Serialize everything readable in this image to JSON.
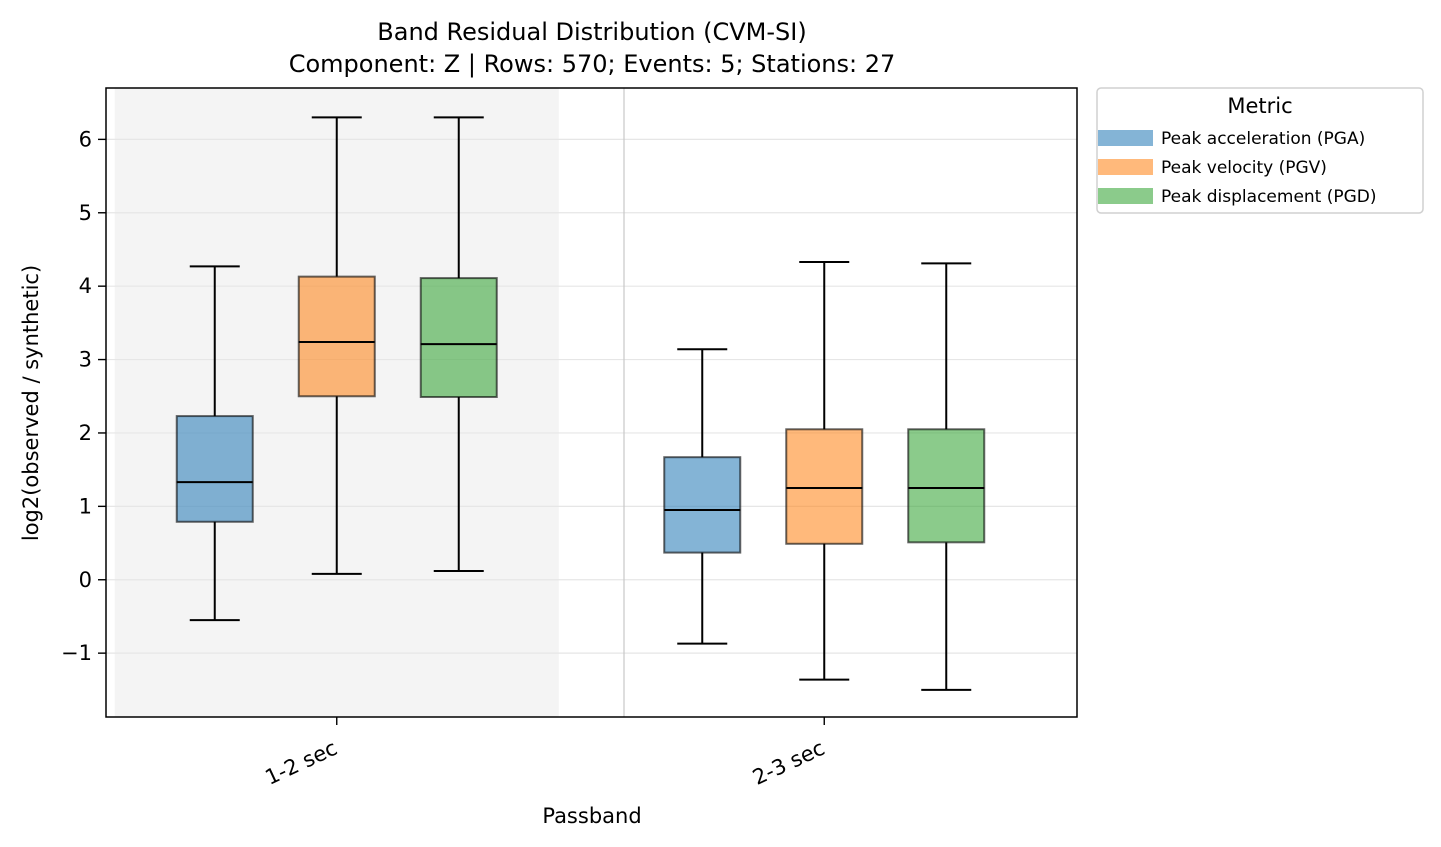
{
  "chart_data": {
    "type": "box",
    "title": "Band Residual Distribution (CVM-SI)",
    "subtitle": "Component: Z | Rows: 570; Events: 5; Stations: 27",
    "xlabel": "Passband",
    "ylabel": "log2(observed / synthetic)",
    "ylim": [
      -1.87,
      6.7
    ],
    "yticks": [
      -1,
      0,
      1,
      2,
      3,
      4,
      5,
      6
    ],
    "ytick_labels": [
      "−1",
      "0",
      "1",
      "2",
      "3",
      "4",
      "5",
      "6"
    ],
    "grid": "horizontal",
    "categories": [
      "1-2 sec",
      "2-3 sec"
    ],
    "shaded_category": "1-2 sec",
    "legend": {
      "title": "Metric",
      "position": "outside top-right"
    },
    "series": [
      {
        "name": "Peak acceleration (PGA)",
        "color": "#1f77b4",
        "boxes": [
          {
            "whislo": -0.55,
            "q1": 0.79,
            "median": 1.33,
            "q3": 2.23,
            "whishi": 4.27
          },
          {
            "whislo": -0.87,
            "q1": 0.37,
            "median": 0.95,
            "q3": 1.67,
            "whishi": 3.14
          }
        ]
      },
      {
        "name": "Peak velocity (PGV)",
        "color": "#ff7f0e",
        "boxes": [
          {
            "whislo": 0.08,
            "q1": 2.5,
            "median": 3.24,
            "q3": 4.13,
            "whishi": 6.3
          },
          {
            "whislo": -1.36,
            "q1": 0.49,
            "median": 1.25,
            "q3": 2.05,
            "whishi": 4.33
          }
        ]
      },
      {
        "name": "Peak displacement (PGD)",
        "color": "#2ca02c",
        "boxes": [
          {
            "whislo": 0.12,
            "q1": 2.49,
            "median": 3.21,
            "q3": 4.11,
            "whishi": 6.3
          },
          {
            "whislo": -1.5,
            "q1": 0.51,
            "median": 1.25,
            "q3": 2.05,
            "whishi": 4.31
          }
        ]
      }
    ]
  }
}
